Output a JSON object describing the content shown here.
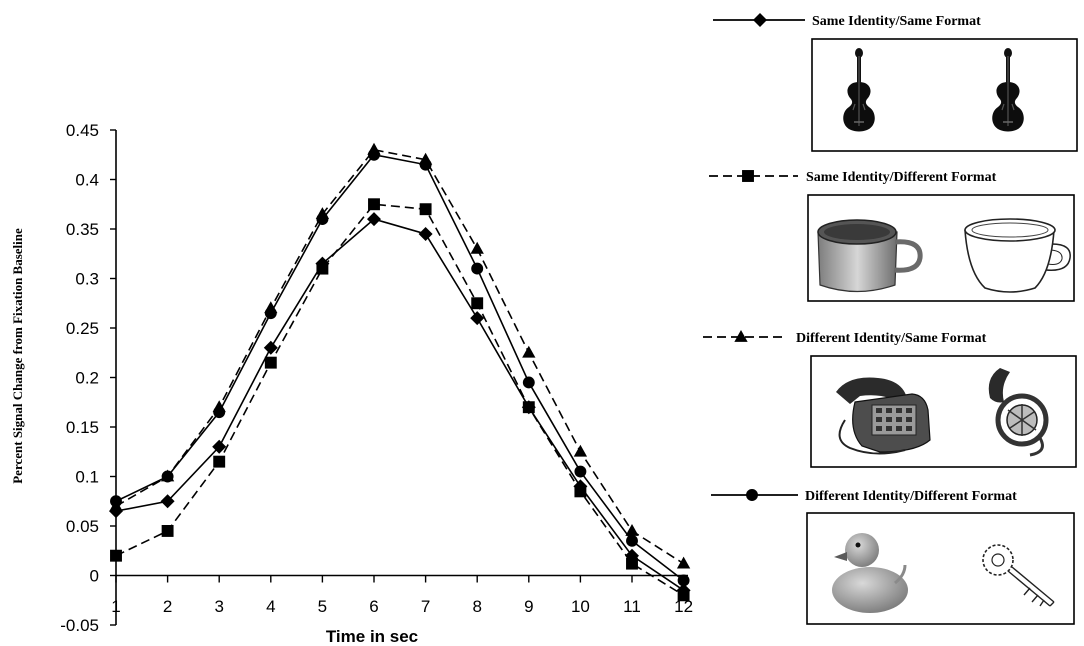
{
  "chart_data": {
    "type": "line",
    "title": "",
    "xlabel": "Time in sec",
    "ylabel": "Percent Signal Change from Fixation Baseline",
    "x": [
      1,
      2,
      3,
      4,
      5,
      6,
      7,
      8,
      9,
      10,
      11,
      12
    ],
    "x_ticks": [
      "1",
      "2",
      "3",
      "4",
      "5",
      "6",
      "7",
      "8",
      "9",
      "10",
      "11",
      "12"
    ],
    "ylim": [
      -0.05,
      0.45
    ],
    "y_ticks": [
      "-0.05",
      "0",
      "0.05",
      "0.1",
      "0.15",
      "0.2",
      "0.25",
      "0.3",
      "0.35",
      "0.4",
      "0.45"
    ],
    "grid": false,
    "legend_position": "right",
    "series": [
      {
        "name": "Same Identity/Same Format",
        "marker": "diamond",
        "dash": "solid",
        "values": [
          0.065,
          0.075,
          0.13,
          0.23,
          0.315,
          0.36,
          0.345,
          0.26,
          0.17,
          0.09,
          0.02,
          -0.015
        ],
        "images": [
          "violin-icon",
          "violin-icon"
        ]
      },
      {
        "name": "Same Identity/Different Format",
        "marker": "square",
        "dash": "dashed",
        "values": [
          0.02,
          0.045,
          0.115,
          0.215,
          0.31,
          0.375,
          0.37,
          0.275,
          0.17,
          0.085,
          0.012,
          -0.02
        ],
        "images": [
          "coffee-cup-photo-icon",
          "coffee-cup-outline-icon"
        ]
      },
      {
        "name": "Different Identity/Same Format",
        "marker": "triangle",
        "dash": "dashed",
        "values": [
          0.07,
          0.1,
          0.17,
          0.27,
          0.365,
          0.43,
          0.42,
          0.33,
          0.225,
          0.125,
          0.045,
          0.012
        ],
        "images": [
          "telephone-icon",
          "french-horn-icon"
        ]
      },
      {
        "name": "Different Identity/Different Format",
        "marker": "circle",
        "dash": "solid",
        "values": [
          0.075,
          0.1,
          0.165,
          0.265,
          0.36,
          0.425,
          0.415,
          0.31,
          0.195,
          0.105,
          0.035,
          -0.005
        ],
        "images": [
          "rubber-duck-icon",
          "key-icon"
        ]
      }
    ]
  }
}
